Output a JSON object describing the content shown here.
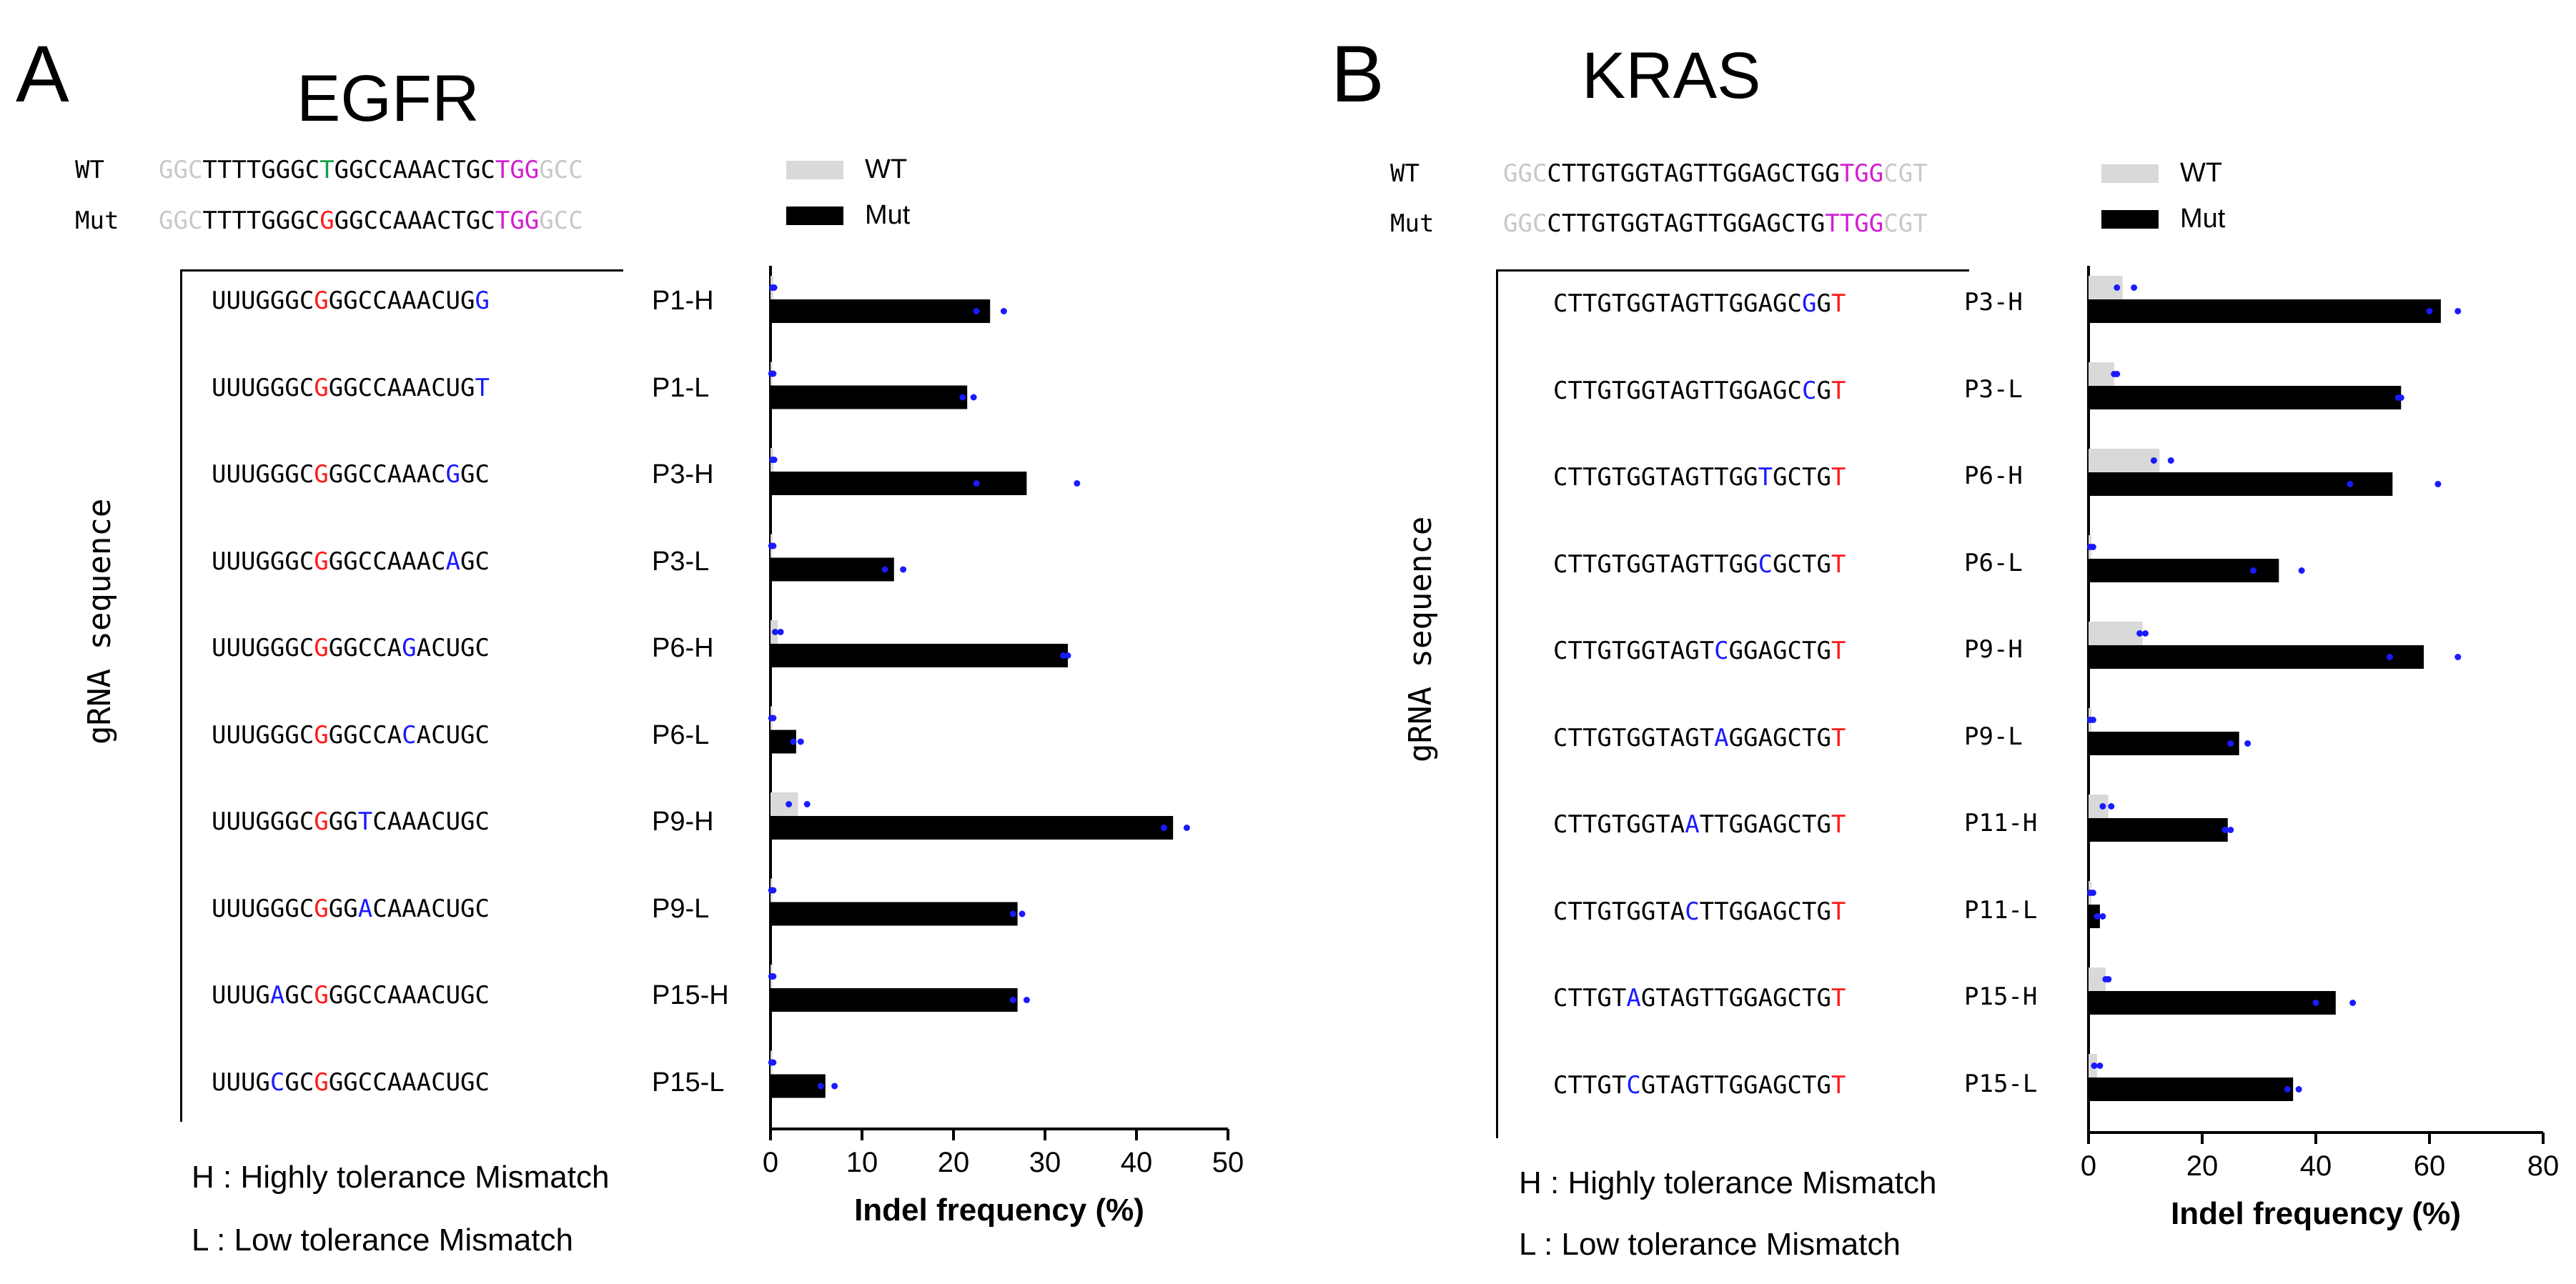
{
  "panels": [
    {
      "letter": "A",
      "gene": "EGFR",
      "wt": {
        "label": "WT",
        "parts": [
          {
            "t": "GGC",
            "c": "grey"
          },
          {
            "t": "TTTTGGGC",
            "c": "black"
          },
          {
            "t": "T",
            "c": "green"
          },
          {
            "t": "GGCCAAACTGC",
            "c": "black"
          },
          {
            "t": "TGG",
            "c": "mag"
          },
          {
            "t": "GCC",
            "c": "grey"
          }
        ]
      },
      "mut": {
        "label": "Mut",
        "parts": [
          {
            "t": "GGC",
            "c": "grey"
          },
          {
            "t": "TTTTGGGC",
            "c": "black"
          },
          {
            "t": "G",
            "c": "red"
          },
          {
            "t": "GGCCAAACTGC",
            "c": "black"
          },
          {
            "t": "TGG",
            "c": "mag"
          },
          {
            "t": "GCC",
            "c": "grey"
          }
        ]
      },
      "y_side_label": "gRNA sequence",
      "guides": [
        {
          "name": "P1-H",
          "parts": [
            {
              "t": "UUUGGGC",
              "c": "black"
            },
            {
              "t": "G",
              "c": "red"
            },
            {
              "t": "GGCCAAACUG",
              "c": "black"
            },
            {
              "t": "G",
              "c": "blue"
            }
          ]
        },
        {
          "name": "P1-L",
          "parts": [
            {
              "t": "UUUGGGC",
              "c": "black"
            },
            {
              "t": "G",
              "c": "red"
            },
            {
              "t": "GGCCAAACUG",
              "c": "black"
            },
            {
              "t": "T",
              "c": "blue"
            }
          ]
        },
        {
          "name": "P3-H",
          "parts": [
            {
              "t": "UUUGGGC",
              "c": "black"
            },
            {
              "t": "G",
              "c": "red"
            },
            {
              "t": "GGCCAAAC",
              "c": "black"
            },
            {
              "t": "G",
              "c": "blue"
            },
            {
              "t": "GC",
              "c": "black"
            }
          ]
        },
        {
          "name": "P3-L",
          "parts": [
            {
              "t": "UUUGGGC",
              "c": "black"
            },
            {
              "t": "G",
              "c": "red"
            },
            {
              "t": "GGCCAAAC",
              "c": "black"
            },
            {
              "t": "A",
              "c": "blue"
            },
            {
              "t": "GC",
              "c": "black"
            }
          ]
        },
        {
          "name": "P6-H",
          "parts": [
            {
              "t": "UUUGGGC",
              "c": "black"
            },
            {
              "t": "G",
              "c": "red"
            },
            {
              "t": "GGCCA",
              "c": "black"
            },
            {
              "t": "G",
              "c": "blue"
            },
            {
              "t": "ACUGC",
              "c": "black"
            }
          ]
        },
        {
          "name": "P6-L",
          "parts": [
            {
              "t": "UUUGGGC",
              "c": "black"
            },
            {
              "t": "G",
              "c": "red"
            },
            {
              "t": "GGCCA",
              "c": "black"
            },
            {
              "t": "C",
              "c": "blue"
            },
            {
              "t": "ACUGC",
              "c": "black"
            }
          ]
        },
        {
          "name": "P9-H",
          "parts": [
            {
              "t": "UUUGGGC",
              "c": "black"
            },
            {
              "t": "G",
              "c": "red"
            },
            {
              "t": "GG",
              "c": "black"
            },
            {
              "t": "T",
              "c": "blue"
            },
            {
              "t": "CAAACUGC",
              "c": "black"
            }
          ]
        },
        {
          "name": "P9-L",
          "parts": [
            {
              "t": "UUUGGGC",
              "c": "black"
            },
            {
              "t": "G",
              "c": "red"
            },
            {
              "t": "GG",
              "c": "black"
            },
            {
              "t": "A",
              "c": "blue"
            },
            {
              "t": "CAAACUGC",
              "c": "black"
            }
          ]
        },
        {
          "name": "P15-H",
          "parts": [
            {
              "t": "UUUG",
              "c": "black"
            },
            {
              "t": "A",
              "c": "blue"
            },
            {
              "t": "GC",
              "c": "black"
            },
            {
              "t": "G",
              "c": "red"
            },
            {
              "t": "GGCCAAACUGC",
              "c": "black"
            }
          ]
        },
        {
          "name": "P15-L",
          "parts": [
            {
              "t": "UUUG",
              "c": "black"
            },
            {
              "t": "C",
              "c": "blue"
            },
            {
              "t": "GC",
              "c": "black"
            },
            {
              "t": "G",
              "c": "red"
            },
            {
              "t": "GGCCAAACUGC",
              "c": "black"
            }
          ]
        }
      ],
      "footnotes": [
        "H : Highly tolerance Mismatch",
        "L : Low tolerance Mismatch"
      ]
    },
    {
      "letter": "B",
      "gene": "KRAS",
      "wt": {
        "label": "WT",
        "parts": [
          {
            "t": "GGC",
            "c": "grey"
          },
          {
            "t": "CTTGTGGTAGTTGGAGCTGG",
            "c": "black"
          },
          {
            "t": "TGG",
            "c": "mag"
          },
          {
            "t": "CGT",
            "c": "grey"
          }
        ]
      },
      "mut": {
        "label": "Mut",
        "parts": [
          {
            "t": "GGC",
            "c": "grey"
          },
          {
            "t": "CTTGTGGTAGTTGGAGCTG",
            "c": "black"
          },
          {
            "t": "TTGG",
            "c": "mag"
          },
          {
            "t": "CGT",
            "c": "grey"
          }
        ]
      },
      "y_side_label": "gRNA sequence",
      "guides": [
        {
          "name": "P3-H",
          "parts": [
            {
              "t": "CTTGTGGTAGTTGGAGC",
              "c": "black"
            },
            {
              "t": "G",
              "c": "blue"
            },
            {
              "t": "G",
              "c": "black"
            },
            {
              "t": "T",
              "c": "red"
            }
          ]
        },
        {
          "name": "P3-L",
          "parts": [
            {
              "t": "CTTGTGGTAGTTGGAGC",
              "c": "black"
            },
            {
              "t": "C",
              "c": "blue"
            },
            {
              "t": "G",
              "c": "black"
            },
            {
              "t": "T",
              "c": "red"
            }
          ]
        },
        {
          "name": "P6-H",
          "parts": [
            {
              "t": "CTTGTGGTAGTTGG",
              "c": "black"
            },
            {
              "t": "T",
              "c": "blue"
            },
            {
              "t": "GCTG",
              "c": "black"
            },
            {
              "t": "T",
              "c": "red"
            }
          ]
        },
        {
          "name": "P6-L",
          "parts": [
            {
              "t": "CTTGTGGTAGTTGG",
              "c": "black"
            },
            {
              "t": "C",
              "c": "blue"
            },
            {
              "t": "GCTG",
              "c": "black"
            },
            {
              "t": "T",
              "c": "red"
            }
          ]
        },
        {
          "name": "P9-H",
          "parts": [
            {
              "t": "CTTGTGGTAGT",
              "c": "black"
            },
            {
              "t": "C",
              "c": "blue"
            },
            {
              "t": "GGAGCTG",
              "c": "black"
            },
            {
              "t": "T",
              "c": "red"
            }
          ]
        },
        {
          "name": "P9-L",
          "parts": [
            {
              "t": "CTTGTGGTAGT",
              "c": "black"
            },
            {
              "t": "A",
              "c": "blue"
            },
            {
              "t": "GGAGCTG",
              "c": "black"
            },
            {
              "t": "T",
              "c": "red"
            }
          ]
        },
        {
          "name": "P11-H",
          "parts": [
            {
              "t": "CTTGTGGTA",
              "c": "black"
            },
            {
              "t": "A",
              "c": "blue"
            },
            {
              "t": "TTGGAGCTG",
              "c": "black"
            },
            {
              "t": "T",
              "c": "red"
            }
          ]
        },
        {
          "name": "P11-L",
          "parts": [
            {
              "t": "CTTGTGGTA",
              "c": "black"
            },
            {
              "t": "C",
              "c": "blue"
            },
            {
              "t": "TTGGAGCTG",
              "c": "black"
            },
            {
              "t": "T",
              "c": "red"
            }
          ]
        },
        {
          "name": "P15-H",
          "parts": [
            {
              "t": "CTTGT",
              "c": "black"
            },
            {
              "t": "A",
              "c": "blue"
            },
            {
              "t": "GTAGTTGGAGCTG",
              "c": "black"
            },
            {
              "t": "T",
              "c": "red"
            }
          ]
        },
        {
          "name": "P15-L",
          "parts": [
            {
              "t": "CTTGT",
              "c": "black"
            },
            {
              "t": "C",
              "c": "blue"
            },
            {
              "t": "GTAGTTGGAGCTG",
              "c": "black"
            },
            {
              "t": "T",
              "c": "red"
            }
          ]
        }
      ],
      "footnotes": [
        "H : Highly tolerance Mismatch",
        "L : Low tolerance Mismatch"
      ]
    }
  ],
  "chart_data": [
    {
      "type": "bar",
      "orientation": "horizontal",
      "title": "EGFR",
      "categories": [
        "P1-H",
        "P1-L",
        "P3-H",
        "P3-L",
        "P6-H",
        "P6-L",
        "P9-H",
        "P9-L",
        "P15-H",
        "P15-L"
      ],
      "series": [
        {
          "name": "WT",
          "color": "#d9d9d9",
          "values": [
            0.3,
            0.2,
            0.3,
            0.2,
            0.8,
            0.2,
            3.0,
            0.2,
            0.2,
            0.2
          ],
          "points": [
            [
              0.2,
              0.4
            ],
            [
              0.1,
              0.3
            ],
            [
              0.2,
              0.4
            ],
            [
              0.1,
              0.3
            ],
            [
              0.5,
              1.1
            ],
            [
              0.1,
              0.3
            ],
            [
              2.0,
              4.0
            ],
            [
              0.1,
              0.3
            ],
            [
              0.1,
              0.3
            ],
            [
              0.1,
              0.3
            ]
          ]
        },
        {
          "name": "Mut",
          "color": "#000000",
          "values": [
            24,
            21.5,
            28,
            13.5,
            32.5,
            2.8,
            44,
            27,
            27,
            6
          ],
          "points": [
            [
              22.5,
              25.5
            ],
            [
              21,
              22.2
            ],
            [
              22.5,
              33.5
            ],
            [
              12.5,
              14.5
            ],
            [
              32,
              32.5
            ],
            [
              2.5,
              3.3
            ],
            [
              43,
              45.5
            ],
            [
              26.5,
              27.5
            ],
            [
              26.5,
              28
            ],
            [
              5.5,
              7
            ]
          ]
        }
      ],
      "xlabel": "Indel frequency (%)",
      "ylabel": "gRNA sequence",
      "xlim": [
        0,
        50
      ],
      "xticks": [
        0,
        10,
        20,
        30,
        40,
        50
      ],
      "legend": [
        "WT",
        "Mut"
      ]
    },
    {
      "type": "bar",
      "orientation": "horizontal",
      "title": "KRAS",
      "categories": [
        "P3-H",
        "P3-L",
        "P6-H",
        "P6-L",
        "P9-H",
        "P9-L",
        "P11-H",
        "P11-L",
        "P15-H",
        "P15-L"
      ],
      "series": [
        {
          "name": "WT",
          "color": "#d9d9d9",
          "values": [
            6,
            4.5,
            12.5,
            0.5,
            9.5,
            0.5,
            3.5,
            0.5,
            3.0,
            1.5
          ],
          "points": [
            [
              5,
              8
            ],
            [
              4.5,
              5
            ],
            [
              11.5,
              14.5
            ],
            [
              0.3,
              0.8
            ],
            [
              9,
              10
            ],
            [
              0.3,
              0.8
            ],
            [
              2.5,
              4
            ],
            [
              0.3,
              0.8
            ],
            [
              3,
              3.5
            ],
            [
              1,
              2
            ]
          ]
        },
        {
          "name": "Mut",
          "color": "#000000",
          "values": [
            62,
            55,
            53.5,
            33.5,
            59,
            26.5,
            24.5,
            2.0,
            43.5,
            36
          ],
          "points": [
            [
              60,
              65
            ],
            [
              54.5,
              55
            ],
            [
              46,
              61.5
            ],
            [
              29,
              37.5
            ],
            [
              53,
              65
            ],
            [
              25,
              28
            ],
            [
              24,
              25
            ],
            [
              1.5,
              2.5
            ],
            [
              40,
              46.5
            ],
            [
              35,
              37
            ]
          ]
        }
      ],
      "xlabel": "Indel frequency (%)",
      "ylabel": "gRNA sequence",
      "xlim": [
        0,
        80
      ],
      "xticks": [
        0,
        20,
        40,
        60,
        80
      ],
      "legend": [
        "WT",
        "Mut"
      ]
    }
  ]
}
